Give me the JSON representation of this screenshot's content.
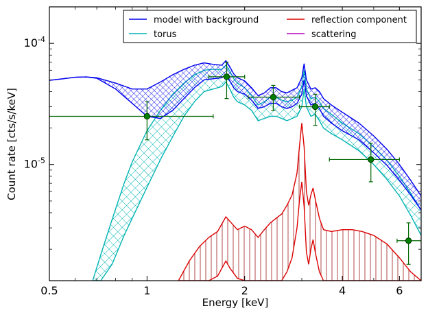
{
  "chart_data": {
    "type": "line",
    "title": "",
    "xlabel": "Energy [keV]",
    "ylabel": "Count rate [cts/s/keV]",
    "x_scale": "log",
    "y_scale": "log",
    "xlim": [
      0.5,
      7.0
    ],
    "ylim": [
      1.1e-06,
      0.0002
    ],
    "grid": false,
    "legend_position": "top-right",
    "legend_columns": 2,
    "x_ticks": [
      {
        "value": 0.5,
        "label": "0.5"
      },
      {
        "value": 1,
        "label": "1"
      },
      {
        "value": 2,
        "label": "2"
      },
      {
        "value": 4,
        "label": "4"
      },
      {
        "value": 6,
        "label": "6"
      }
    ],
    "y_ticks": [
      {
        "value": 1e-05,
        "base": "10",
        "exp": "-5"
      },
      {
        "value": 0.0001,
        "base": "10",
        "exp": "-4"
      }
    ],
    "series": [
      {
        "name": "model with background",
        "color": "#0000ee",
        "hatch": "grid",
        "x": [
          0.5,
          0.55,
          0.6,
          0.65,
          0.7,
          0.8,
          0.9,
          1.0,
          1.1,
          1.2,
          1.3,
          1.4,
          1.5,
          1.6,
          1.7,
          1.75,
          1.8,
          1.85,
          1.9,
          2.0,
          2.1,
          2.2,
          2.3,
          2.4,
          2.5,
          2.6,
          2.7,
          2.8,
          2.9,
          3.0,
          3.05,
          3.1,
          3.2,
          3.3,
          3.4,
          3.5,
          3.7,
          4.0,
          4.5,
          5.0,
          5.5,
          6.0,
          6.5,
          7.0
        ],
        "upper": [
          4.95e-05,
          5.1e-05,
          5.25e-05,
          5.28e-05,
          5.2e-05,
          4.7e-05,
          4.2e-05,
          4.2e-05,
          4.8e-05,
          5.5e-05,
          6.1e-05,
          6.6e-05,
          6.9e-05,
          6.7e-05,
          6.6e-05,
          7.2e-05,
          6.4e-05,
          5.6e-05,
          5.2e-05,
          4.9e-05,
          4.3e-05,
          3.7e-05,
          3.9e-05,
          4.3e-05,
          4.3e-05,
          4e-05,
          3.9e-05,
          4.1e-05,
          4.3e-05,
          5.2e-05,
          6.8e-05,
          5e-05,
          4.2e-05,
          4.3e-05,
          4e-05,
          3.5e-05,
          3.1e-05,
          2.7e-05,
          2.2e-05,
          1.72e-05,
          1.33e-05,
          1e-05,
          7.4e-06,
          5.5e-06
        ],
        "lower": [
          4.95e-05,
          5.1e-05,
          5.25e-05,
          5.28e-05,
          5.15e-05,
          4.2e-05,
          3.2e-05,
          2.5e-05,
          2.4e-05,
          2.8e-05,
          3.5e-05,
          4.3e-05,
          5e-05,
          5.1e-05,
          5.2e-05,
          5.5e-05,
          4.9e-05,
          4.3e-05,
          4e-05,
          3.8e-05,
          3.4e-05,
          2.9e-05,
          3e-05,
          3.2e-05,
          3.2e-05,
          3e-05,
          2.9e-05,
          3e-05,
          3.2e-05,
          3.8e-05,
          5e-05,
          3.7e-05,
          3.1e-05,
          3.2e-05,
          2.9e-05,
          2.5e-05,
          2.2e-05,
          1.9e-05,
          1.6e-05,
          1.25e-05,
          9.8e-06,
          7.4e-06,
          5.6e-06,
          4.2e-06
        ]
      },
      {
        "name": "torus",
        "color": "#00b3b3",
        "hatch": "diagonal-cross",
        "x": [
          0.68,
          0.72,
          0.78,
          0.85,
          0.9,
          1.0,
          1.1,
          1.2,
          1.3,
          1.4,
          1.5,
          1.6,
          1.7,
          1.75,
          1.8,
          1.85,
          1.9,
          2.0,
          2.1,
          2.2,
          2.3,
          2.4,
          2.5,
          2.6,
          2.7,
          2.8,
          2.9,
          3.0,
          3.05,
          3.1,
          3.2,
          3.3,
          3.4,
          3.5,
          3.7,
          4.0,
          4.5,
          5.0,
          5.5,
          6.0,
          6.5,
          7.0
        ],
        "upper": [
          1.1e-06,
          1.8e-06,
          3.5e-06,
          7e-06,
          1.05e-05,
          1.9e-05,
          2.8e-05,
          3.8e-05,
          4.7e-05,
          5.5e-05,
          6e-05,
          6.1e-05,
          6.1e-05,
          6.6e-05,
          5.9e-05,
          5.1e-05,
          4.7e-05,
          4.3e-05,
          3.7e-05,
          3.1e-05,
          3.3e-05,
          3.6e-05,
          3.6e-05,
          3.4e-05,
          3.3e-05,
          3.4e-05,
          3.6e-05,
          4.4e-05,
          6e-05,
          4.2e-05,
          3.5e-05,
          3.6e-05,
          3.3e-05,
          2.9e-05,
          2.6e-05,
          2.2e-05,
          1.8e-05,
          1.4e-05,
          1.08e-05,
          8e-06,
          5.8e-06,
          4.2e-06
        ],
        "lower": [
          1.1e-06,
          1.1e-06,
          1.5e-06,
          2.6e-06,
          3.6e-06,
          6.5e-06,
          1.1e-05,
          1.7e-05,
          2.5e-05,
          3.3e-05,
          4e-05,
          4.2e-05,
          4.4e-05,
          4.8e-05,
          4.2e-05,
          3.6e-05,
          3.3e-05,
          3.1e-05,
          2.8e-05,
          2.3e-05,
          2.4e-05,
          2.5e-05,
          2.5e-05,
          2.4e-05,
          2.3e-05,
          2.4e-05,
          2.5e-05,
          3e-05,
          4.2e-05,
          3e-05,
          2.5e-05,
          2.6e-05,
          2.3e-05,
          2e-05,
          1.8e-05,
          1.6e-05,
          1.3e-05,
          1e-05,
          7.5e-06,
          5.5e-06,
          3.8e-06,
          2.6e-06
        ]
      },
      {
        "name": "reflection component",
        "color": "#dd0000",
        "hatch": "vertical",
        "x": [
          1.25,
          1.35,
          1.45,
          1.55,
          1.65,
          1.75,
          1.8,
          1.9,
          2.0,
          2.1,
          2.2,
          2.3,
          2.4,
          2.5,
          2.6,
          2.7,
          2.8,
          2.9,
          2.95,
          3.0,
          3.05,
          3.1,
          3.15,
          3.2,
          3.25,
          3.3,
          3.4,
          3.5,
          3.7,
          4.0,
          4.3,
          4.6,
          5.0,
          5.5,
          6.0,
          6.5,
          7.0
        ],
        "upper": [
          1.1e-06,
          1.6e-06,
          2.1e-06,
          2.5e-06,
          2.8e-06,
          3.7e-06,
          3.4e-06,
          2.9e-06,
          3.1e-06,
          2.9e-06,
          2.5e-06,
          2.9e-06,
          3.3e-06,
          3.6e-06,
          3.9e-06,
          4.6e-06,
          5.6e-06,
          8.5e-06,
          1.4e-05,
          2.2e-05,
          1.4e-05,
          6e-06,
          4.6e-06,
          5.6e-06,
          6.4e-06,
          5.2e-06,
          3.6e-06,
          2.9e-06,
          2.8e-06,
          2.9e-06,
          2.9e-06,
          2.8e-06,
          2.6e-06,
          2.2e-06,
          1.7e-06,
          1.3e-06,
          1.1e-06
        ],
        "lower": [
          1.1e-06,
          1.1e-06,
          1.1e-06,
          1.1e-06,
          1.2e-06,
          1.6e-06,
          1.4e-06,
          1.15e-06,
          1.1e-06,
          1.1e-06,
          1.1e-06,
          1.1e-06,
          1.1e-06,
          1.1e-06,
          1.1e-06,
          1.3e-06,
          1.7e-06,
          3e-06,
          5e-06,
          7.2e-06,
          4.5e-06,
          1.9e-06,
          1.5e-06,
          2e-06,
          2.4e-06,
          1.9e-06,
          1.3e-06,
          1.1e-06,
          1.1e-06,
          1.1e-06,
          1.1e-06,
          1.1e-06,
          1.1e-06,
          1.1e-06,
          1.1e-06,
          1.1e-06,
          1.1e-06
        ]
      },
      {
        "name": "scattering",
        "color": "#bb00bb",
        "hatch": "none",
        "x": [],
        "upper": [],
        "lower": []
      }
    ],
    "data_points": {
      "name": "data",
      "color": "#006400",
      "marker_fill": "#008000",
      "points": [
        {
          "x": 1.0,
          "xlo": 0.5,
          "xhi": 1.6,
          "y": 2.5e-05,
          "ylo": 1.6e-05,
          "yhi": 3.3e-05
        },
        {
          "x": 1.76,
          "xlo": 1.55,
          "xhi": 2.0,
          "y": 5.3e-05,
          "ylo": 3.5e-05,
          "yhi": 7e-05
        },
        {
          "x": 2.45,
          "xlo": 2.05,
          "xhi": 2.95,
          "y": 3.6e-05,
          "ylo": 2.8e-05,
          "yhi": 4.5e-05
        },
        {
          "x": 3.3,
          "xlo": 2.95,
          "xhi": 3.65,
          "y": 3e-05,
          "ylo": 2.1e-05,
          "yhi": 3.8e-05
        },
        {
          "x": 4.9,
          "xlo": 3.65,
          "xhi": 6.0,
          "y": 1.1e-05,
          "ylo": 7.2e-06,
          "yhi": 1.5e-05
        },
        {
          "x": 6.4,
          "xlo": 5.9,
          "xhi": 7.0,
          "y": 2.35e-06,
          "ylo": 1.5e-06,
          "yhi": 3.3e-06
        }
      ]
    }
  }
}
